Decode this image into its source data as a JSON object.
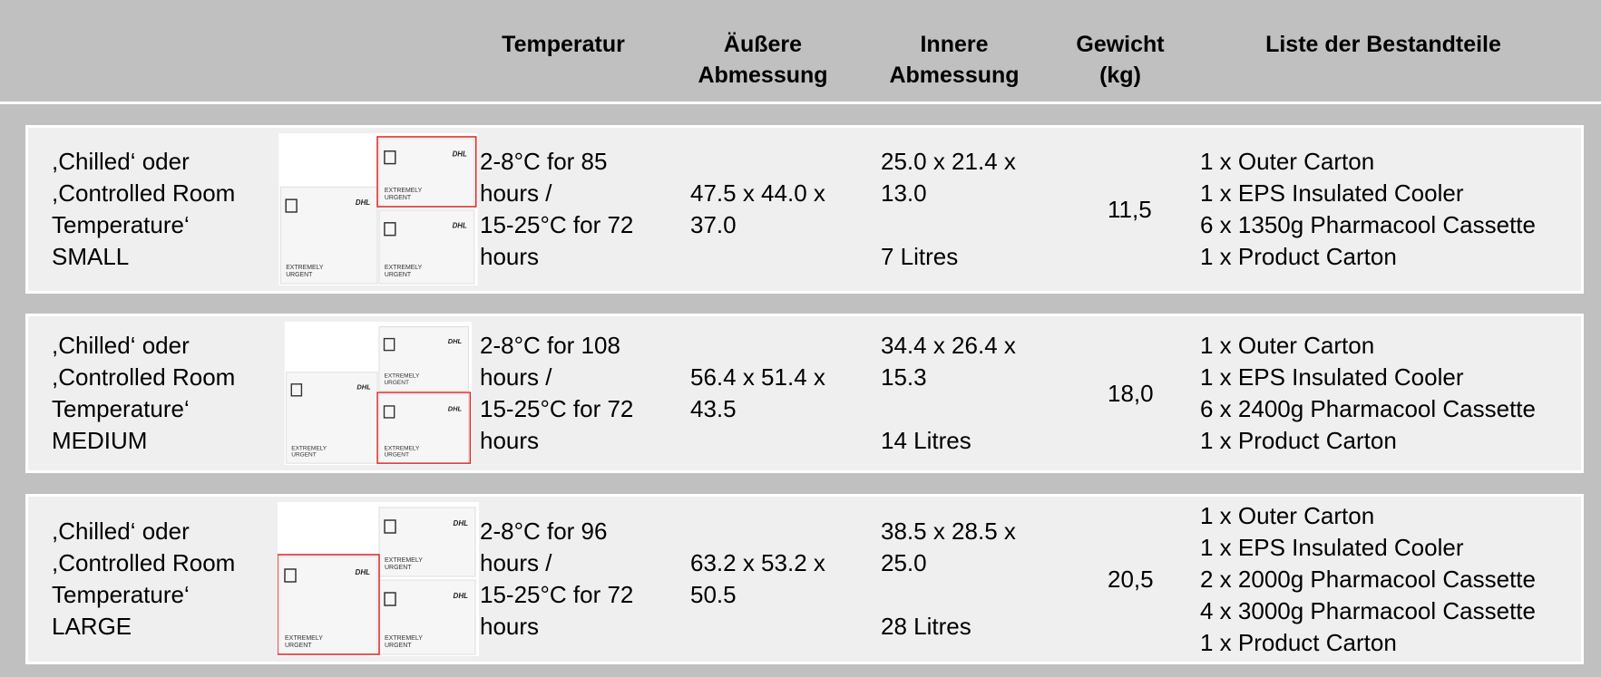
{
  "header": {
    "columns": [
      {
        "lines": [
          "Temperatur"
        ]
      },
      {
        "lines": [
          "Äußere",
          "Abmessung"
        ]
      },
      {
        "lines": [
          "Innere",
          "Abmessung"
        ]
      },
      {
        "lines": [
          "Gewicht",
          "(kg)"
        ]
      },
      {
        "lines": [
          "Liste der Bestandteile"
        ]
      }
    ]
  },
  "product_image_text": {
    "brand": "DHL",
    "label_lines": [
      "EXTREMELY",
      "URGENT"
    ]
  },
  "rows": [
    {
      "name": [
        ",Chilled‘ oder",
        ",Controlled Room",
        "Temperature‘",
        "SMALL"
      ],
      "temperature": [
        "2-8°C for 85",
        "hours /",
        "15-25°C for 72",
        "hours"
      ],
      "outer": [
        "47.5 x 44.0 x",
        "37.0"
      ],
      "inner": [
        "25.0 x 21.4 x",
        "13.0"
      ],
      "volume": "7 Litres",
      "weight": "11,5",
      "components": [
        "1 x Outer Carton",
        "1 x EPS Insulated Cooler",
        "6 x 1350g Pharmacool Cassette",
        "1 x Product Carton"
      ]
    },
    {
      "name": [
        ",Chilled‘ oder",
        ",Controlled Room",
        "Temperature‘",
        "MEDIUM"
      ],
      "temperature": [
        "2-8°C for 108",
        "hours /",
        "15-25°C for 72",
        "hours"
      ],
      "outer": [
        "56.4 x 51.4 x",
        "43.5"
      ],
      "inner": [
        "34.4 x 26.4 x",
        "15.3"
      ],
      "volume": "14 Litres",
      "weight": "18,0",
      "components": [
        "1 x Outer Carton",
        "1 x EPS Insulated Cooler",
        "6 x 2400g Pharmacool Cassette",
        "1 x Product Carton"
      ]
    },
    {
      "name": [
        ",Chilled‘ oder",
        ",Controlled Room",
        "Temperature‘",
        "LARGE"
      ],
      "temperature": [
        "2-8°C for 96",
        "hours /",
        "15-25°C for 72",
        "hours"
      ],
      "outer": [
        "63.2 x 53.2 x",
        "50.5"
      ],
      "inner": [
        "38.5 x 28.5 x",
        "25.0"
      ],
      "volume": "28 Litres",
      "weight": "20,5",
      "components": [
        "1 x Outer Carton",
        "1 x EPS Insulated Cooler",
        "2 x 2000g Pharmacool Cassette",
        "4 x 3000g Pharmacool Cassette",
        "1 x Product Carton"
      ]
    }
  ]
}
